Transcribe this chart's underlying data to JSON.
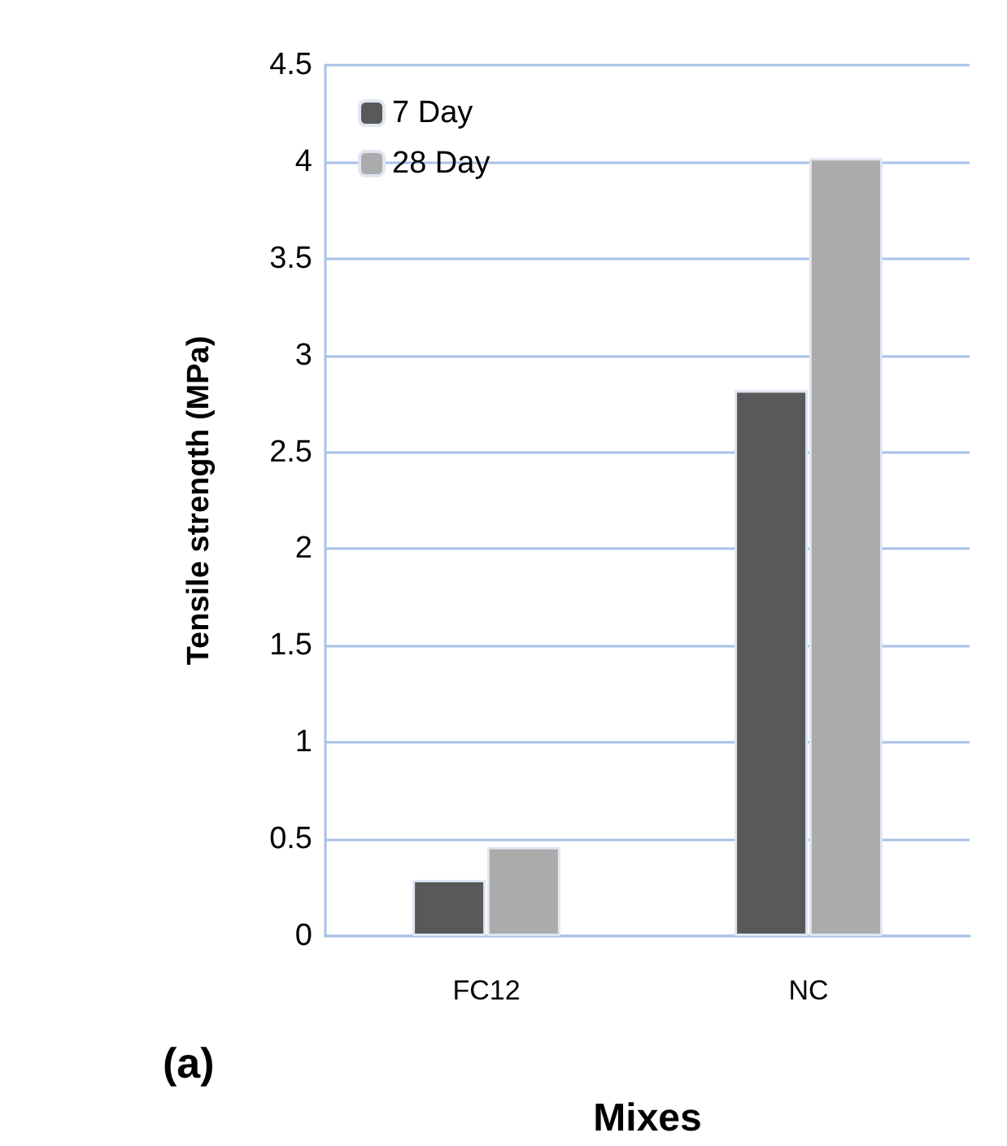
{
  "chart_data": {
    "type": "bar",
    "xlabel": "Mixes",
    "ylabel": "Tensile strength (MPa)",
    "categories": [
      "FC12",
      "NC"
    ],
    "series": [
      {
        "name": "7 Day",
        "color": "#595959",
        "values": [
          0.29,
          2.82
        ]
      },
      {
        "name": "28 Day",
        "color": "#ababab",
        "values": [
          0.46,
          4.02
        ]
      }
    ],
    "ylim": [
      0,
      4.5
    ],
    "yticks": [
      0,
      0.5,
      1,
      1.5,
      2,
      2.5,
      3,
      3.5,
      4,
      4.5
    ],
    "grid": "y",
    "legend": "top left",
    "annotations": [
      "(a)"
    ]
  }
}
